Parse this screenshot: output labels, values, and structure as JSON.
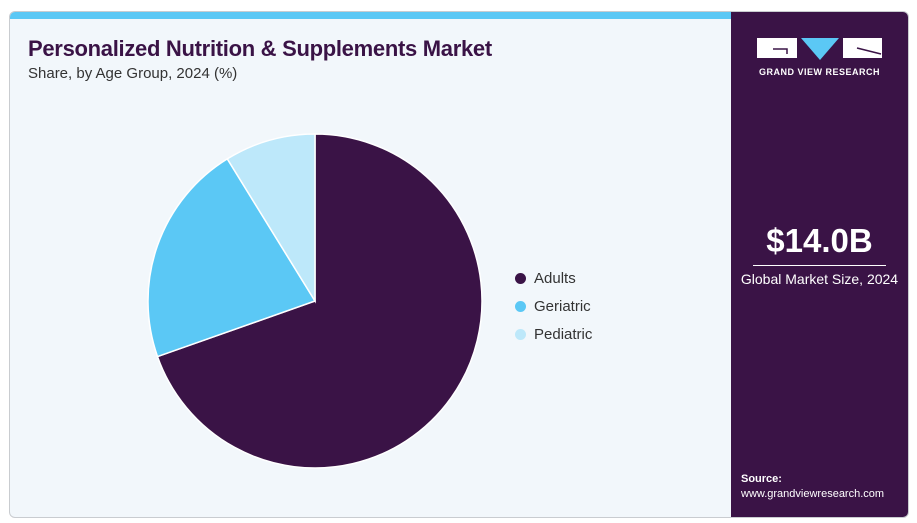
{
  "header": {
    "title": "Personalized Nutrition & Supplements Market",
    "subtitle": "Share, by Age Group, 2024 (%)"
  },
  "sidebar": {
    "logo_text": "GRAND VIEW RESEARCH",
    "market_size": "$14.0B",
    "market_caption": "Global Market Size, 2024",
    "source_label": "Source:",
    "source_url": "www.grandviewresearch.com"
  },
  "chart_data": {
    "type": "pie",
    "title": "Personalized Nutrition & Supplements Market",
    "subtitle": "Share, by Age Group, 2024 (%)",
    "categories": [
      "Adults",
      "Geriatric",
      "Pediatric"
    ],
    "values": [
      69.6,
      21.6,
      8.8
    ],
    "colors": [
      "#3a1346",
      "#5bc8f5",
      "#bde8fa"
    ],
    "legend": "right"
  }
}
